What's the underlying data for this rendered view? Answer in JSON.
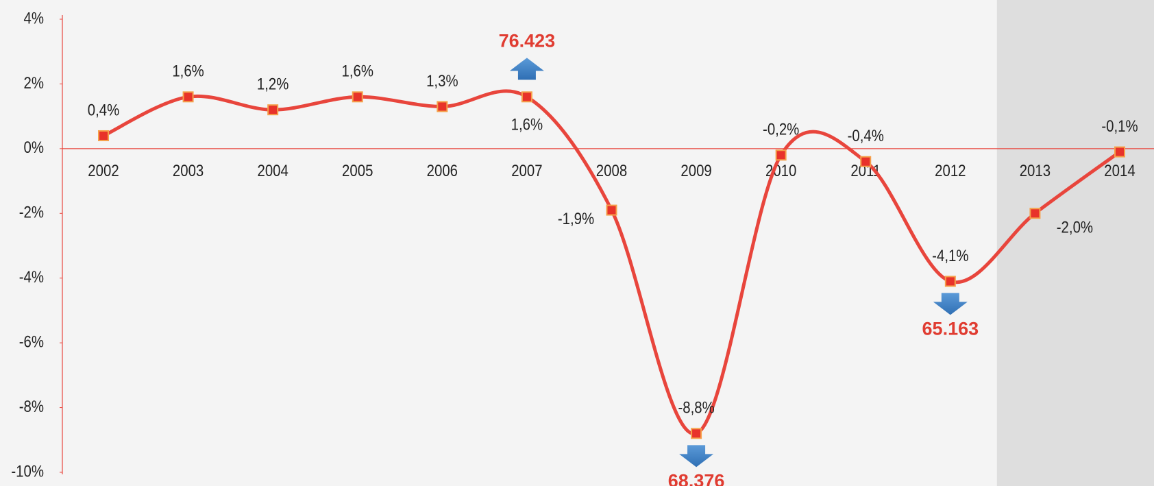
{
  "chart_data": {
    "type": "line",
    "categories": [
      "2002",
      "2003",
      "2004",
      "2005",
      "2006",
      "2007",
      "2008",
      "2009",
      "2010",
      "2011",
      "2012",
      "2013",
      "2014"
    ],
    "values": [
      0.4,
      1.6,
      1.2,
      1.6,
      1.3,
      1.6,
      -1.9,
      -8.8,
      -0.2,
      -0.4,
      -4.1,
      -2.0,
      -0.1
    ],
    "value_labels": [
      "0,4%",
      "1,6%",
      "1,2%",
      "1,6%",
      "1,3%",
      "1,6%",
      "-1,9%",
      "-8,8%",
      "-0,2%",
      "-0,4%",
      "-4,1%",
      "-2,0%",
      "-0,1%"
    ],
    "color": "#e8453c",
    "ylim": [
      -10,
      4
    ],
    "yticks": [
      {
        "value": -10,
        "label": "-10%"
      },
      {
        "value": -8,
        "label": "-8%"
      },
      {
        "value": -6,
        "label": "-6%"
      },
      {
        "value": -4,
        "label": "-4%"
      },
      {
        "value": -2,
        "label": "-2%"
      },
      {
        "value": 0,
        "label": "0%"
      },
      {
        "value": 2,
        "label": "2%"
      },
      {
        "value": 4,
        "label": "4%"
      }
    ],
    "shaded_range": [
      "2013",
      "2014"
    ],
    "annotations": [
      {
        "x": "2007",
        "text": "76.423",
        "direction": "up"
      },
      {
        "x": "2009",
        "text": "68.376",
        "direction": "down"
      },
      {
        "x": "2012",
        "text": "65.163",
        "direction": "down"
      }
    ]
  }
}
